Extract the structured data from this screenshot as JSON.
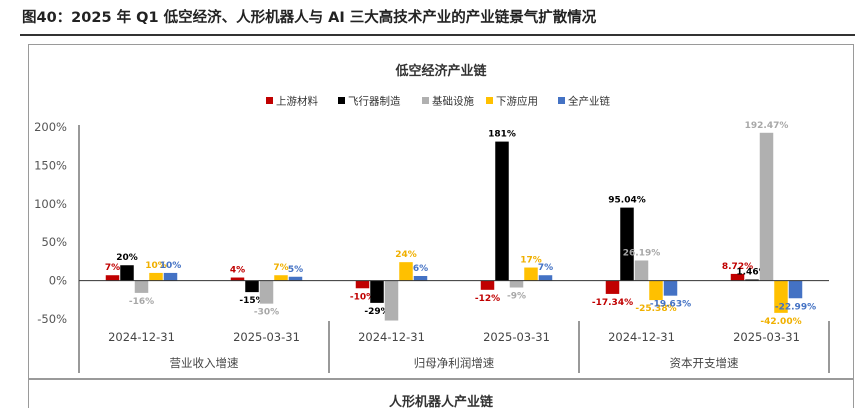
{
  "figure_title": "图40：2025 年 Q1 低空经济、人形机器人与 AI 三大高技术产业的产业链景气扩散情况",
  "next_chart_title": "人形机器人产业链",
  "chart_data": {
    "type": "bar",
    "title": "低空经济产业链",
    "ylim": [
      -50,
      200
    ],
    "y_ticks": [
      -50,
      0,
      50,
      100,
      150,
      200
    ],
    "y_tick_labels": [
      "-50%",
      "0%",
      "50%",
      "100%",
      "150%",
      "200%"
    ],
    "grid": false,
    "legend_position": "top",
    "groups": [
      {
        "label": "营业收入增速",
        "categories": [
          "2024-12-31",
          "2025-03-31"
        ]
      },
      {
        "label": "归母净利润增速",
        "categories": [
          "2024-12-31",
          "2025-03-31"
        ]
      },
      {
        "label": "资本开支增速",
        "categories": [
          "2024-12-31",
          "2025-03-31"
        ]
      }
    ],
    "series": [
      {
        "name": "上游材料",
        "color": "#c00000",
        "values": [
          7,
          4,
          -10,
          -12,
          -17.34,
          8.72
        ],
        "labels": [
          "7%",
          "4%",
          "-10%",
          "-12%",
          "-17.34%",
          "8.72%"
        ]
      },
      {
        "name": "飞行器制造",
        "color": "#000000",
        "values": [
          20,
          -15,
          -29,
          181,
          95.04,
          1.46
        ],
        "labels": [
          "20%",
          "-15%",
          "-29%",
          "181%",
          "95.04%",
          "1.46%"
        ]
      },
      {
        "name": "基础设施",
        "color": "#b0b0b0",
        "values": [
          -16,
          -30,
          -52,
          -9,
          26.19,
          192.47
        ],
        "labels": [
          "-16%",
          "-30%",
          "",
          "-9%",
          "26.19%",
          "192.47%"
        ]
      },
      {
        "name": "下游应用",
        "color": "#ffc000",
        "values": [
          10,
          7,
          24,
          17,
          -25.38,
          -42
        ],
        "labels": [
          "10%",
          "7%",
          "24%",
          "17%",
          "-25.38%",
          "-42.00%"
        ]
      },
      {
        "name": "全产业链",
        "color": "#4472c4",
        "values": [
          10,
          5,
          6,
          7,
          -19.63,
          -22.99
        ],
        "labels": [
          "10%",
          "5%",
          "6%",
          "7%",
          "-19.63%",
          "-22.99%"
        ]
      }
    ]
  }
}
